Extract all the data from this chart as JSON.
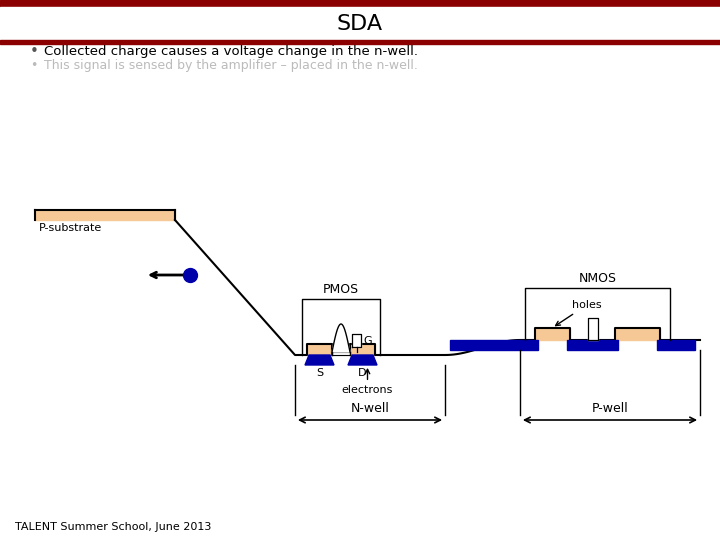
{
  "title": "SDA",
  "bullet1": "Collected charge causes a voltage change in the n-well.",
  "bullet2": "This signal is sensed by the amplifier – placed in the n-well.",
  "footer": "TALENT Summer School, June 2013",
  "header_bg": "#8B0000",
  "bg_color": "#FFFFFF",
  "bullet1_color": "#000000",
  "bullet2_color": "#BBBBBB",
  "pmos_label": "PMOS",
  "nmos_label": "NMOS",
  "s_label": "S",
  "d_label": "D",
  "g_label": "G",
  "electrons_label": "electrons",
  "holes_label": "holes",
  "nwell_label": "N-well",
  "pwell_label": "P-well",
  "psub_label": "P-substrate",
  "sand_color": "#F5C896",
  "blue_color": "#0000AA",
  "line_color": "#000000"
}
